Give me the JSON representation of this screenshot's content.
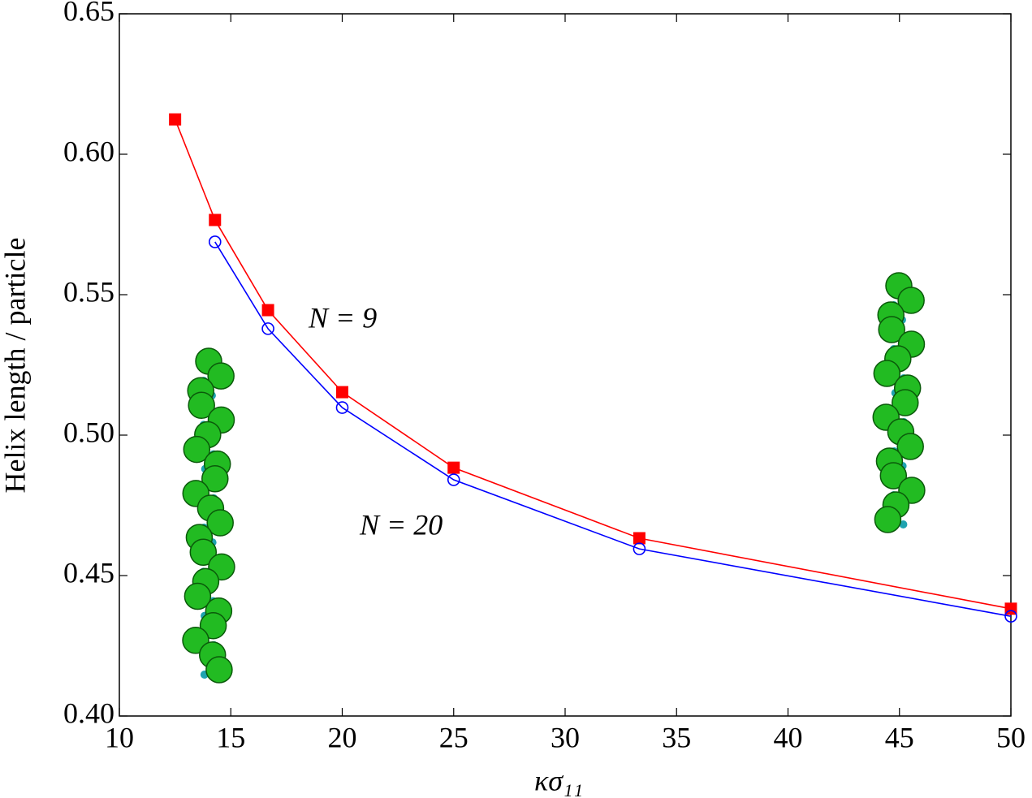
{
  "chart_data": {
    "type": "line",
    "x_label": "κσ₁₁",
    "y_label": "Helix length / particle",
    "x": [
      12.5,
      14.29,
      16.67,
      20,
      25,
      33.33,
      50
    ],
    "series": [
      {
        "name": "N = 9",
        "color": "#ff0000",
        "marker": "square",
        "values": [
          0.6124,
          0.5766,
          0.5445,
          0.5153,
          0.4884,
          0.4633,
          0.4382
        ]
      },
      {
        "name": "N = 20",
        "color": "#0000ff",
        "marker": "open-circle",
        "values": [
          null,
          0.5688,
          0.5379,
          0.5098,
          0.4841,
          0.4595,
          0.4355
        ]
      }
    ],
    "xlim": [
      10,
      50
    ],
    "xticks": [
      10,
      15,
      20,
      25,
      30,
      35,
      40,
      45,
      50
    ],
    "ylim": [
      0.4,
      0.65
    ],
    "yticks": [
      {
        "value": 0.4,
        "label": "0.40"
      },
      0.45,
      {
        "value": 0.5,
        "label": "0.50"
      },
      0.55,
      {
        "value": 0.6,
        "label": "0.60"
      },
      0.65
    ]
  }
}
